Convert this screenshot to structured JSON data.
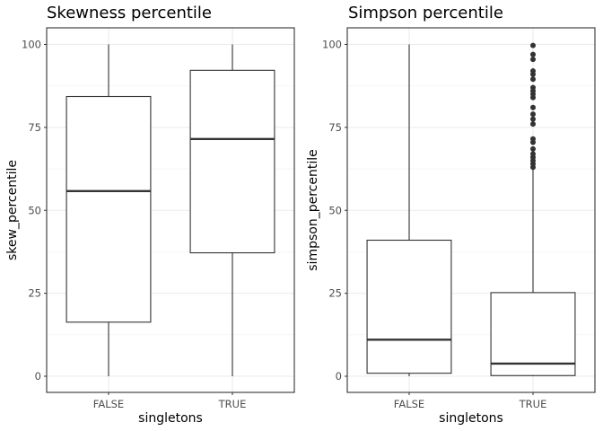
{
  "chart_data": [
    {
      "type": "boxplot",
      "title": "Skewness percentile",
      "xlabel": "singletons",
      "ylabel": "skew_percentile",
      "ylim": [
        0,
        100
      ],
      "yticks": [
        0,
        25,
        50,
        75,
        100
      ],
      "categories": [
        "FALSE",
        "TRUE"
      ],
      "boxes": [
        {
          "category": "FALSE",
          "min": 0,
          "q1": 16.3,
          "median": 55.8,
          "q3": 84.3,
          "max": 100,
          "outliers": []
        },
        {
          "category": "TRUE",
          "min": 0,
          "q1": 37.2,
          "median": 71.5,
          "q3": 92.2,
          "max": 100,
          "outliers": []
        }
      ],
      "grid": true
    },
    {
      "type": "boxplot",
      "title": "Simpson percentile",
      "xlabel": "singletons",
      "ylabel": "simpson_percentile",
      "ylim": [
        0,
        100
      ],
      "yticks": [
        0,
        25,
        50,
        75,
        100
      ],
      "categories": [
        "FALSE",
        "TRUE"
      ],
      "boxes": [
        {
          "category": "FALSE",
          "min": 0,
          "q1": 0.9,
          "median": 11,
          "q3": 41,
          "max": 100,
          "outliers": []
        },
        {
          "category": "TRUE",
          "min": 0,
          "q1": 0.2,
          "median": 3.8,
          "q3": 25.2,
          "max": 62.5,
          "outliers": [
            63,
            64,
            65,
            66,
            67,
            68.5,
            70.5,
            71.5,
            76,
            77.5,
            79,
            81,
            84,
            85,
            86,
            87,
            89.5,
            91,
            92,
            95.5,
            97,
            99.7
          ]
        }
      ],
      "grid": true
    }
  ]
}
